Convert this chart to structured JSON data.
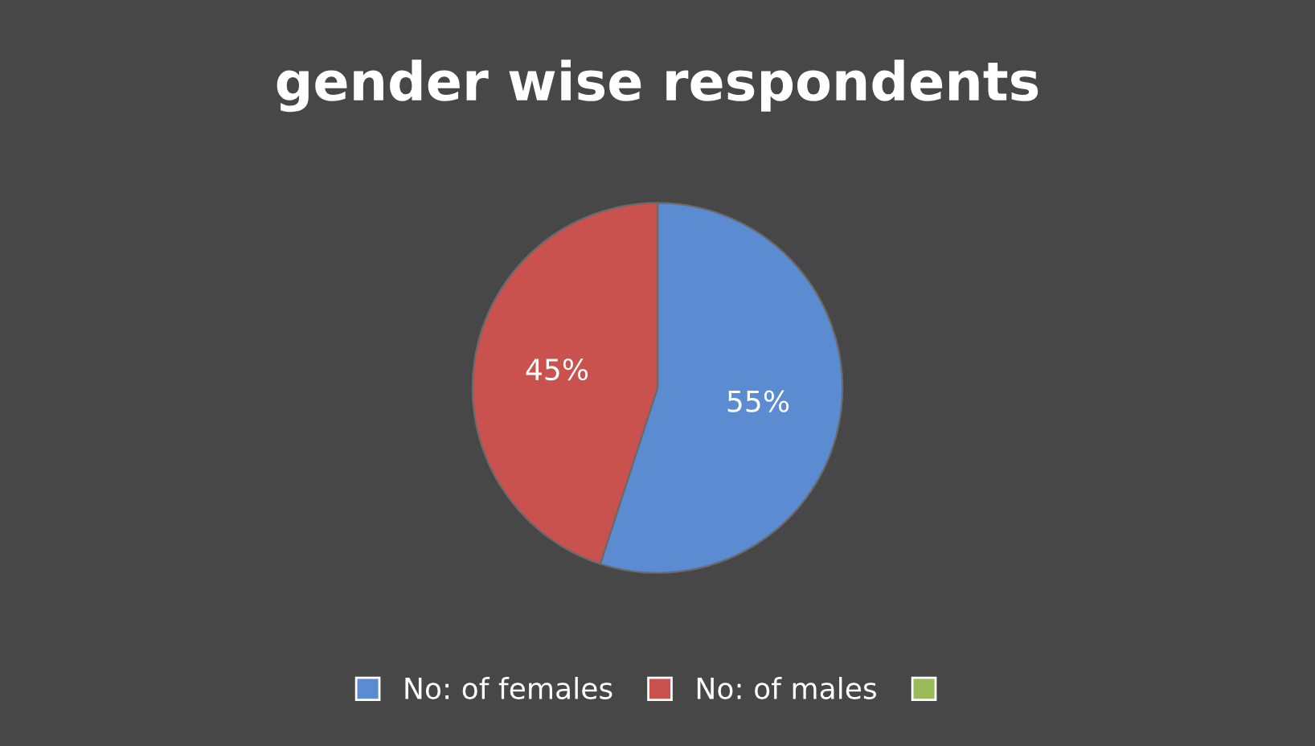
{
  "chart_data": {
    "type": "pie",
    "title": "gender wise respondents",
    "categories": [
      "No: of females",
      "No: of males",
      null
    ],
    "values": [
      55,
      45,
      0
    ],
    "colors": [
      "#5b8bd0",
      "#c9524f",
      "#9bbb59"
    ],
    "value_labels": [
      "55%",
      "45%",
      null
    ],
    "legend": "bottom"
  }
}
